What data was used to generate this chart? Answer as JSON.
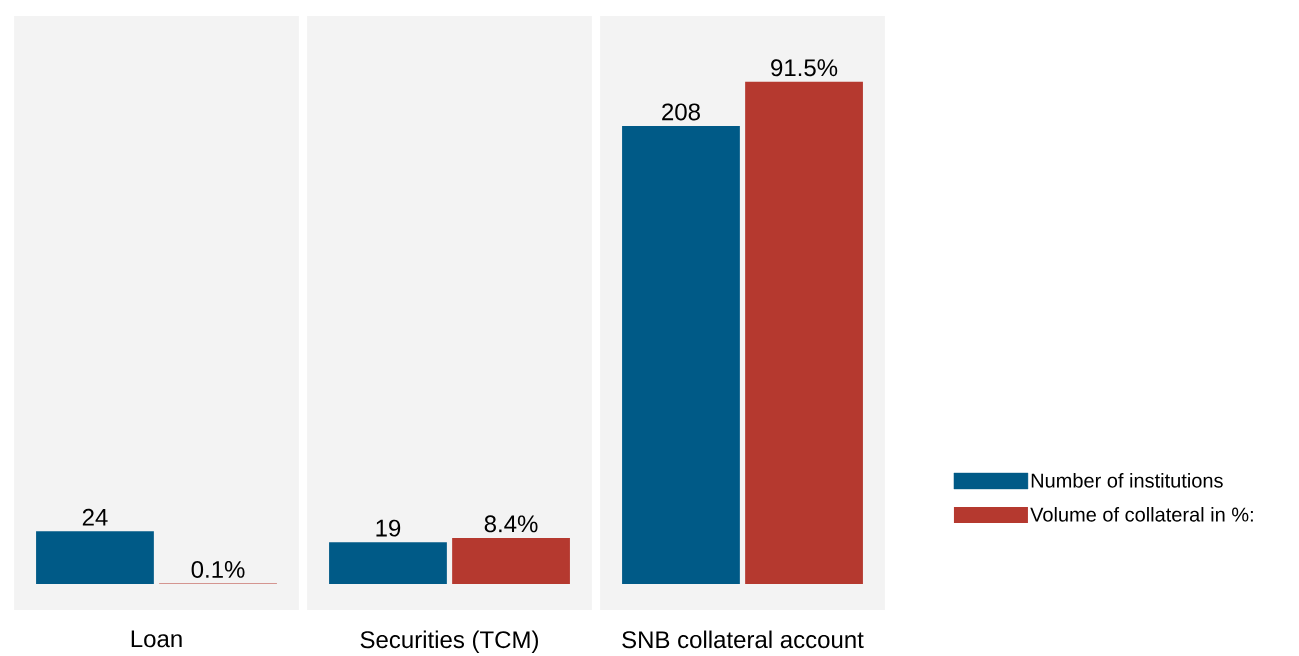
{
  "chart_data": {
    "type": "bar",
    "categories": [
      "Loan",
      "Securities (TCM)",
      "SNB collateral account"
    ],
    "series": [
      {
        "name": "Number of institutions",
        "color": "#005a87",
        "values": [
          24,
          19,
          208
        ],
        "value_labels": [
          "24",
          "19",
          "208"
        ]
      },
      {
        "name": "Volume of collateral in %:",
        "color": "#b5392f",
        "values": [
          0.1,
          8.4,
          91.5
        ],
        "value_labels": [
          "0.1%",
          "8.4%",
          "91.5%"
        ],
        "axis": "y2"
      }
    ],
    "legend": "right",
    "tick_labels": "x"
  }
}
